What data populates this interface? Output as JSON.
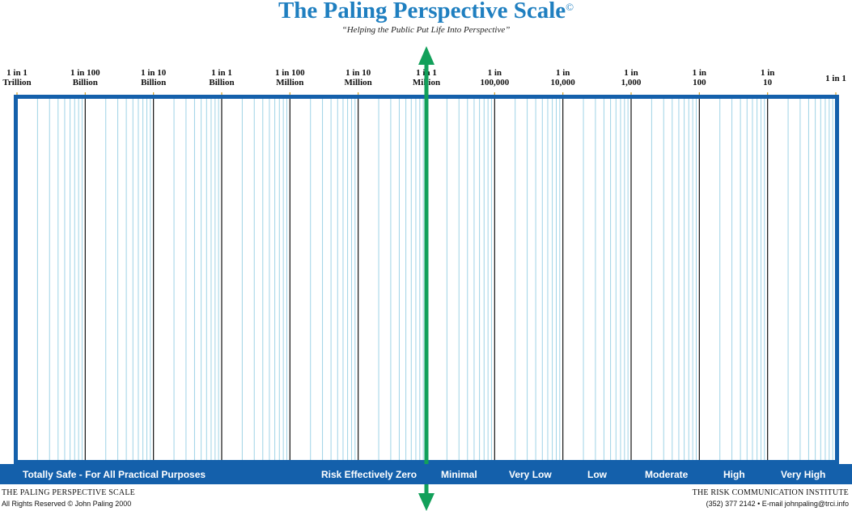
{
  "title": "The Paling Perspective Scale",
  "copyright_mark": "©",
  "subtitle": "“Helping the Public Put Life Into Perspective”",
  "chart_data": {
    "type": "scale",
    "title": "The Paling Perspective Scale",
    "scale": "logarithmic",
    "ticks": [
      {
        "line1": "1 in 1",
        "line2": "Trillion",
        "odds": 1000000000000
      },
      {
        "line1": "1 in 100",
        "line2": "Billion",
        "odds": 100000000000
      },
      {
        "line1": "1 in 10",
        "line2": "Billion",
        "odds": 10000000000
      },
      {
        "line1": "1 in 1",
        "line2": "Billion",
        "odds": 1000000000
      },
      {
        "line1": "1 in 100",
        "line2": "Million",
        "odds": 100000000
      },
      {
        "line1": "1 in 10",
        "line2": "Million",
        "odds": 10000000
      },
      {
        "line1": "1 in 1",
        "line2": "Million",
        "odds": 1000000
      },
      {
        "line1": "1 in",
        "line2": "100,000",
        "odds": 100000
      },
      {
        "line1": "1 in",
        "line2": "10,000",
        "odds": 10000
      },
      {
        "line1": "1 in",
        "line2": "1,000",
        "odds": 1000
      },
      {
        "line1": "1 in",
        "line2": "100",
        "odds": 100
      },
      {
        "line1": "1 in",
        "line2": "10",
        "odds": 10
      },
      {
        "line1": "1 in 1",
        "line2": "",
        "odds": 1
      }
    ],
    "marker_at_odds": 1000000,
    "risk_categories": [
      "Totally Safe - For All Practical Purposes",
      "Risk Effectively  Zero",
      "Minimal",
      "Very Low",
      "Low",
      "Moderate",
      "High",
      "Very High"
    ],
    "colors": {
      "frame": "#1460ab",
      "major_line": "#111111",
      "minor_line": "#9fd3e6",
      "marker": "#12a05a",
      "band": "#1460ab"
    }
  },
  "footer": {
    "left_title": "THE PALING PERSPECTIVE SCALE",
    "left_rights": "All Rights Reserved © John Paling 2000",
    "right_title": "THE RISK COMMUNICATION INSTITUTE",
    "right_contact": "(352) 377 2142 • E-mail johnpaling@trci.info"
  }
}
